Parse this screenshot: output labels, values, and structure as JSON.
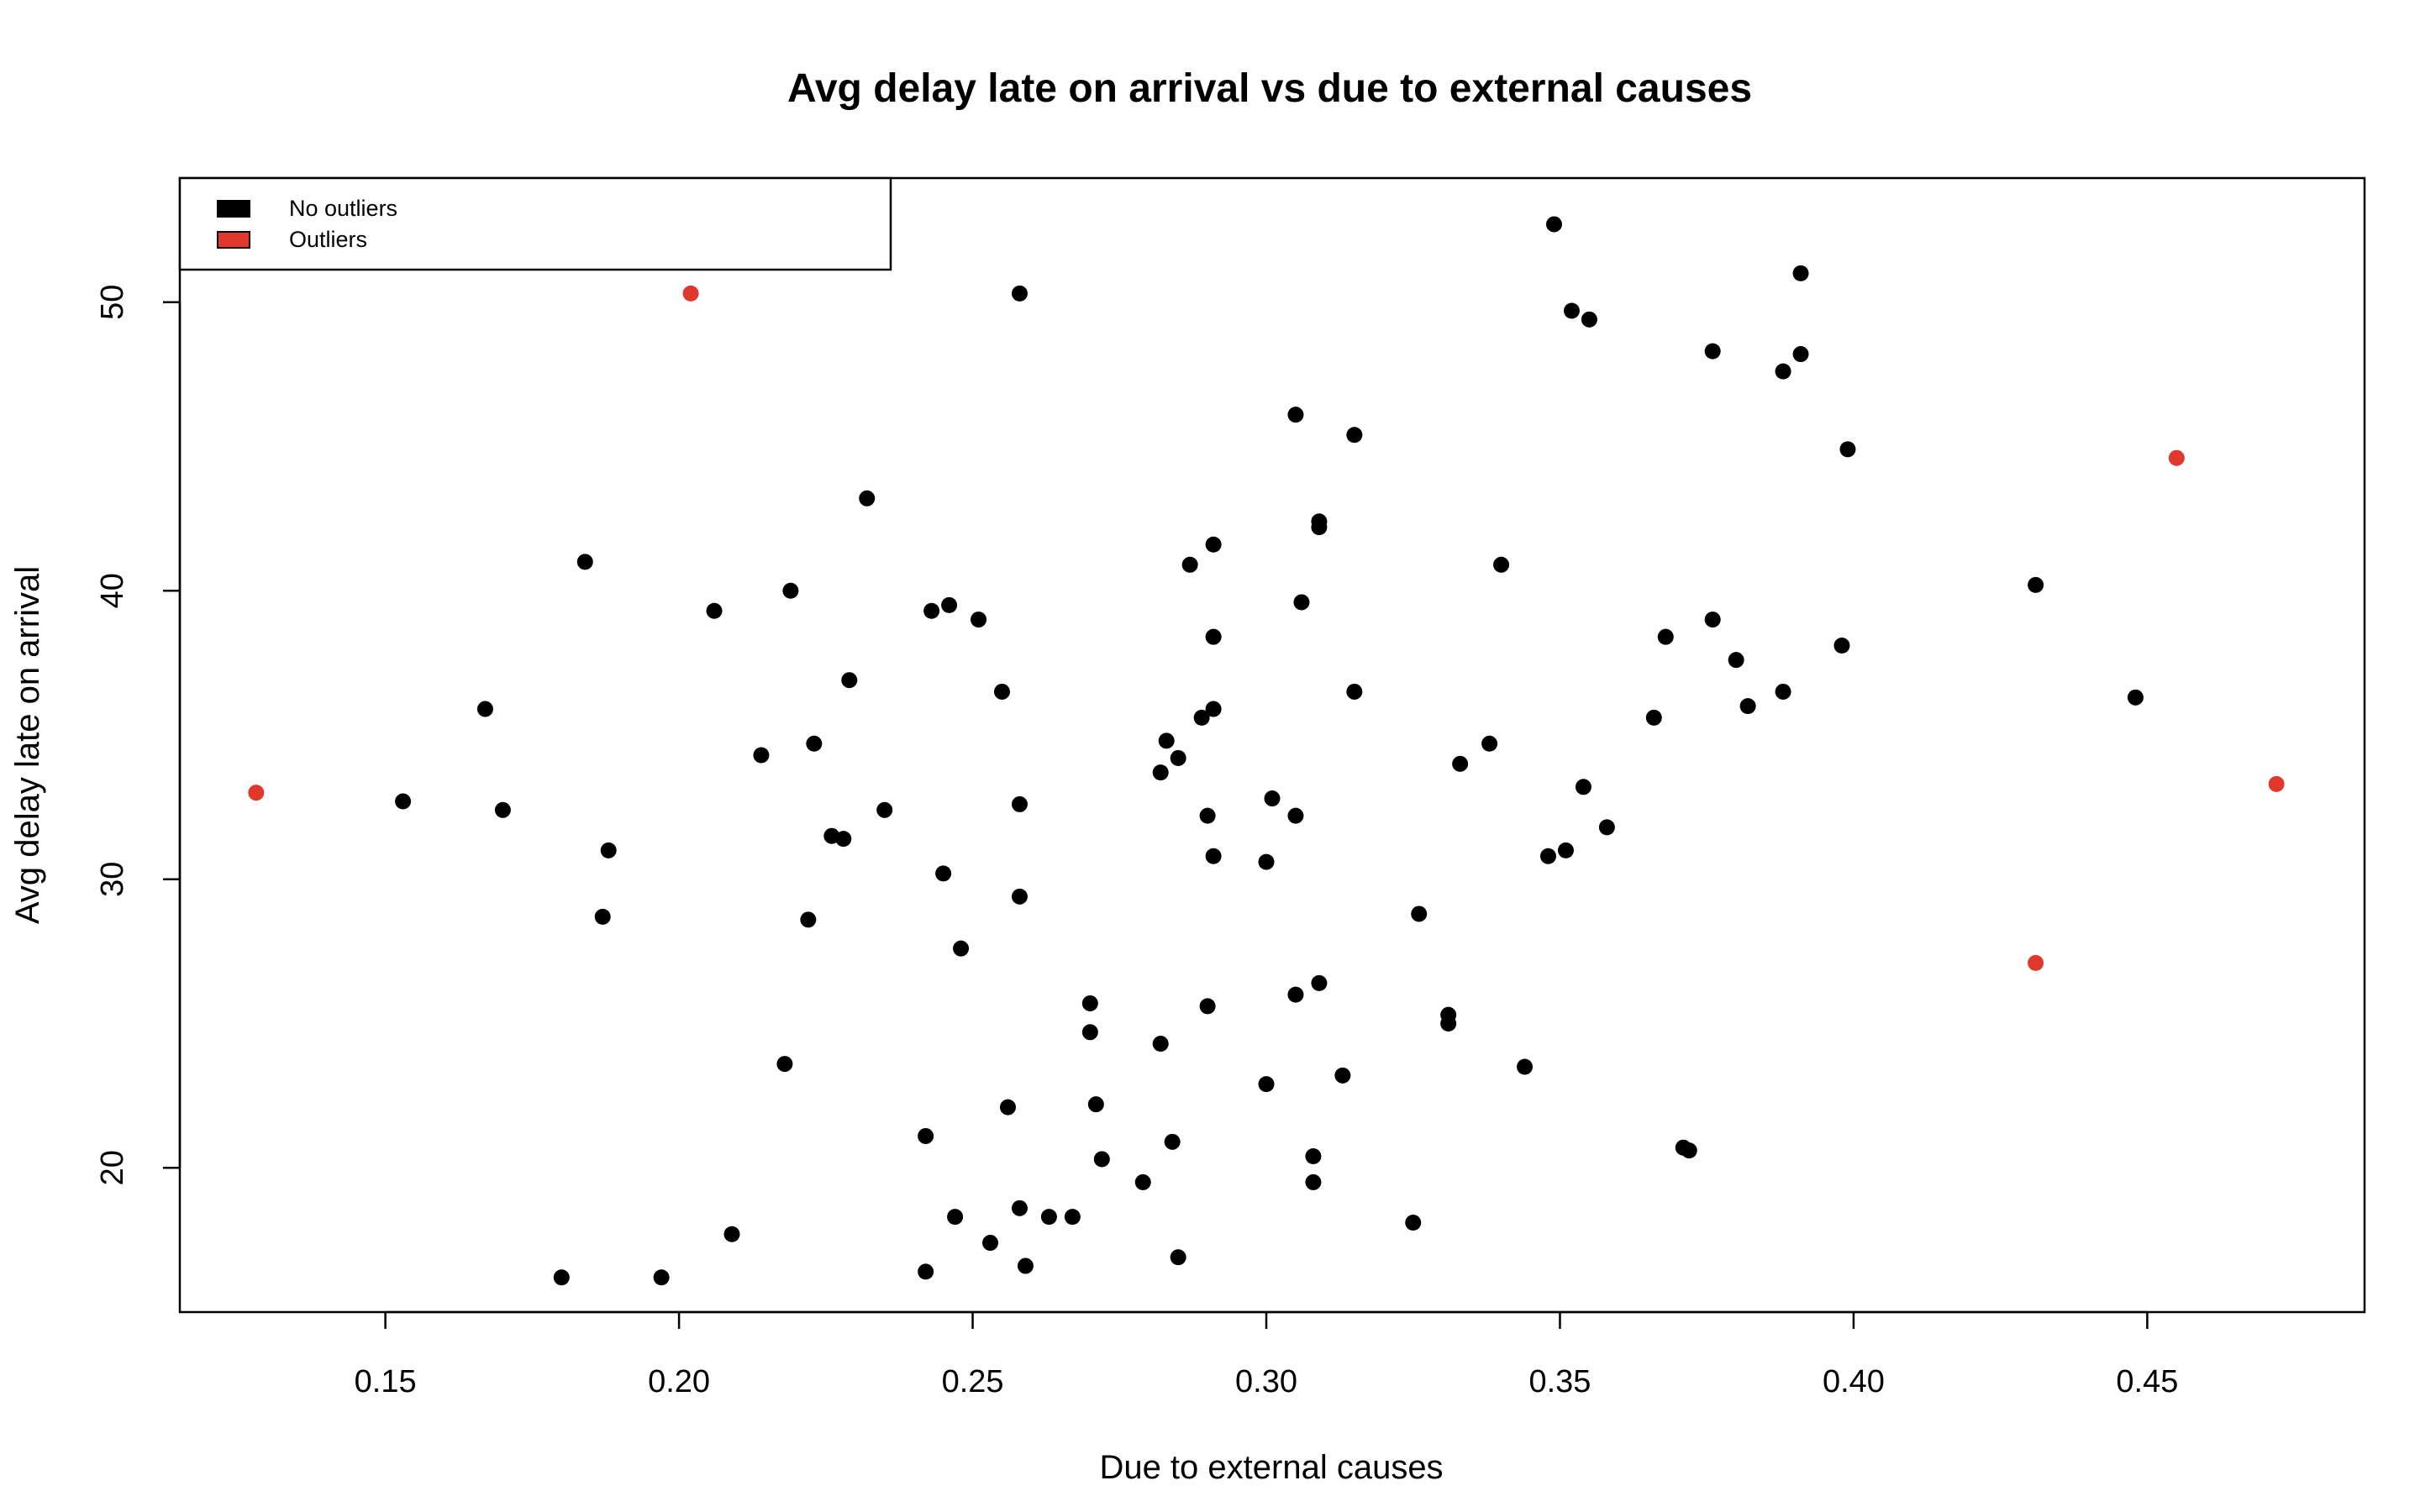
{
  "chart_data": {
    "type": "scatter",
    "title": "Avg delay late on arrival vs due to external causes",
    "xlabel": "Due to external causes",
    "ylabel": "Avg delay late on arrival",
    "xlim": [
      0.115,
      0.487
    ],
    "ylim": [
      15.0,
      54.3
    ],
    "xticks": [
      0.15,
      0.2,
      0.25,
      0.3,
      0.35,
      0.4,
      0.45
    ],
    "xtick_labels": [
      "0.15",
      "0.20",
      "0.25",
      "0.30",
      "0.35",
      "0.40",
      "0.45"
    ],
    "yticks": [
      20,
      30,
      40,
      50
    ],
    "ytick_labels": [
      "20",
      "30",
      "40",
      "50"
    ],
    "grid": false,
    "legend_position": "top-left",
    "series": [
      {
        "name": "No outliers",
        "color": "#000000",
        "points": [
          [
            0.349,
            52.7
          ],
          [
            0.391,
            51.0
          ],
          [
            0.258,
            50.3
          ],
          [
            0.352,
            49.7
          ],
          [
            0.355,
            49.4
          ],
          [
            0.376,
            48.3
          ],
          [
            0.391,
            48.2
          ],
          [
            0.388,
            47.6
          ],
          [
            0.305,
            46.1
          ],
          [
            0.315,
            45.4
          ],
          [
            0.399,
            44.9
          ],
          [
            0.232,
            43.2
          ],
          [
            0.309,
            42.4
          ],
          [
            0.309,
            42.2
          ],
          [
            0.291,
            41.6
          ],
          [
            0.184,
            41.0
          ],
          [
            0.287,
            40.9
          ],
          [
            0.34,
            40.9
          ],
          [
            0.431,
            40.2
          ],
          [
            0.219,
            40.0
          ],
          [
            0.306,
            39.6
          ],
          [
            0.246,
            39.5
          ],
          [
            0.206,
            39.3
          ],
          [
            0.243,
            39.3
          ],
          [
            0.376,
            39.0
          ],
          [
            0.251,
            39.0
          ],
          [
            0.291,
            38.4
          ],
          [
            0.368,
            38.4
          ],
          [
            0.398,
            38.1
          ],
          [
            0.38,
            37.6
          ],
          [
            0.229,
            36.9
          ],
          [
            0.388,
            36.5
          ],
          [
            0.255,
            36.5
          ],
          [
            0.315,
            36.5
          ],
          [
            0.448,
            36.3
          ],
          [
            0.167,
            35.9
          ],
          [
            0.382,
            36.0
          ],
          [
            0.291,
            35.9
          ],
          [
            0.289,
            35.6
          ],
          [
            0.366,
            35.6
          ],
          [
            0.283,
            34.8
          ],
          [
            0.223,
            34.7
          ],
          [
            0.338,
            34.7
          ],
          [
            0.214,
            34.3
          ],
          [
            0.285,
            34.2
          ],
          [
            0.333,
            34.0
          ],
          [
            0.282,
            33.7
          ],
          [
            0.354,
            33.2
          ],
          [
            0.301,
            32.8
          ],
          [
            0.153,
            32.7
          ],
          [
            0.258,
            32.6
          ],
          [
            0.17,
            32.4
          ],
          [
            0.235,
            32.4
          ],
          [
            0.305,
            32.2
          ],
          [
            0.29,
            32.2
          ],
          [
            0.358,
            31.8
          ],
          [
            0.226,
            31.5
          ],
          [
            0.228,
            31.4
          ],
          [
            0.188,
            31.0
          ],
          [
            0.351,
            31.0
          ],
          [
            0.348,
            30.8
          ],
          [
            0.291,
            30.8
          ],
          [
            0.3,
            30.6
          ],
          [
            0.245,
            30.2
          ],
          [
            0.258,
            29.4
          ],
          [
            0.326,
            28.8
          ],
          [
            0.187,
            28.7
          ],
          [
            0.222,
            28.6
          ],
          [
            0.248,
            27.6
          ],
          [
            0.309,
            26.4
          ],
          [
            0.305,
            26.0
          ],
          [
            0.27,
            25.7
          ],
          [
            0.29,
            25.6
          ],
          [
            0.331,
            25.3
          ],
          [
            0.331,
            25.0
          ],
          [
            0.27,
            24.7
          ],
          [
            0.282,
            24.3
          ],
          [
            0.218,
            23.6
          ],
          [
            0.344,
            23.5
          ],
          [
            0.313,
            23.2
          ],
          [
            0.3,
            22.9
          ],
          [
            0.271,
            22.2
          ],
          [
            0.256,
            22.1
          ],
          [
            0.242,
            21.1
          ],
          [
            0.284,
            20.9
          ],
          [
            0.371,
            20.7
          ],
          [
            0.372,
            20.6
          ],
          [
            0.308,
            20.4
          ],
          [
            0.272,
            20.3
          ],
          [
            0.279,
            19.5
          ],
          [
            0.308,
            19.5
          ],
          [
            0.258,
            18.6
          ],
          [
            0.247,
            18.3
          ],
          [
            0.263,
            18.3
          ],
          [
            0.267,
            18.3
          ],
          [
            0.325,
            18.1
          ],
          [
            0.209,
            17.7
          ],
          [
            0.253,
            17.4
          ],
          [
            0.285,
            16.9
          ],
          [
            0.259,
            16.6
          ],
          [
            0.242,
            16.4
          ],
          [
            0.18,
            16.2
          ],
          [
            0.197,
            16.2
          ]
        ]
      },
      {
        "name": "Outliers",
        "color": "#e0382d",
        "points": [
          [
            0.202,
            50.3
          ],
          [
            0.128,
            33.0
          ],
          [
            0.455,
            44.6
          ],
          [
            0.472,
            33.3
          ],
          [
            0.431,
            27.1
          ]
        ]
      }
    ]
  }
}
